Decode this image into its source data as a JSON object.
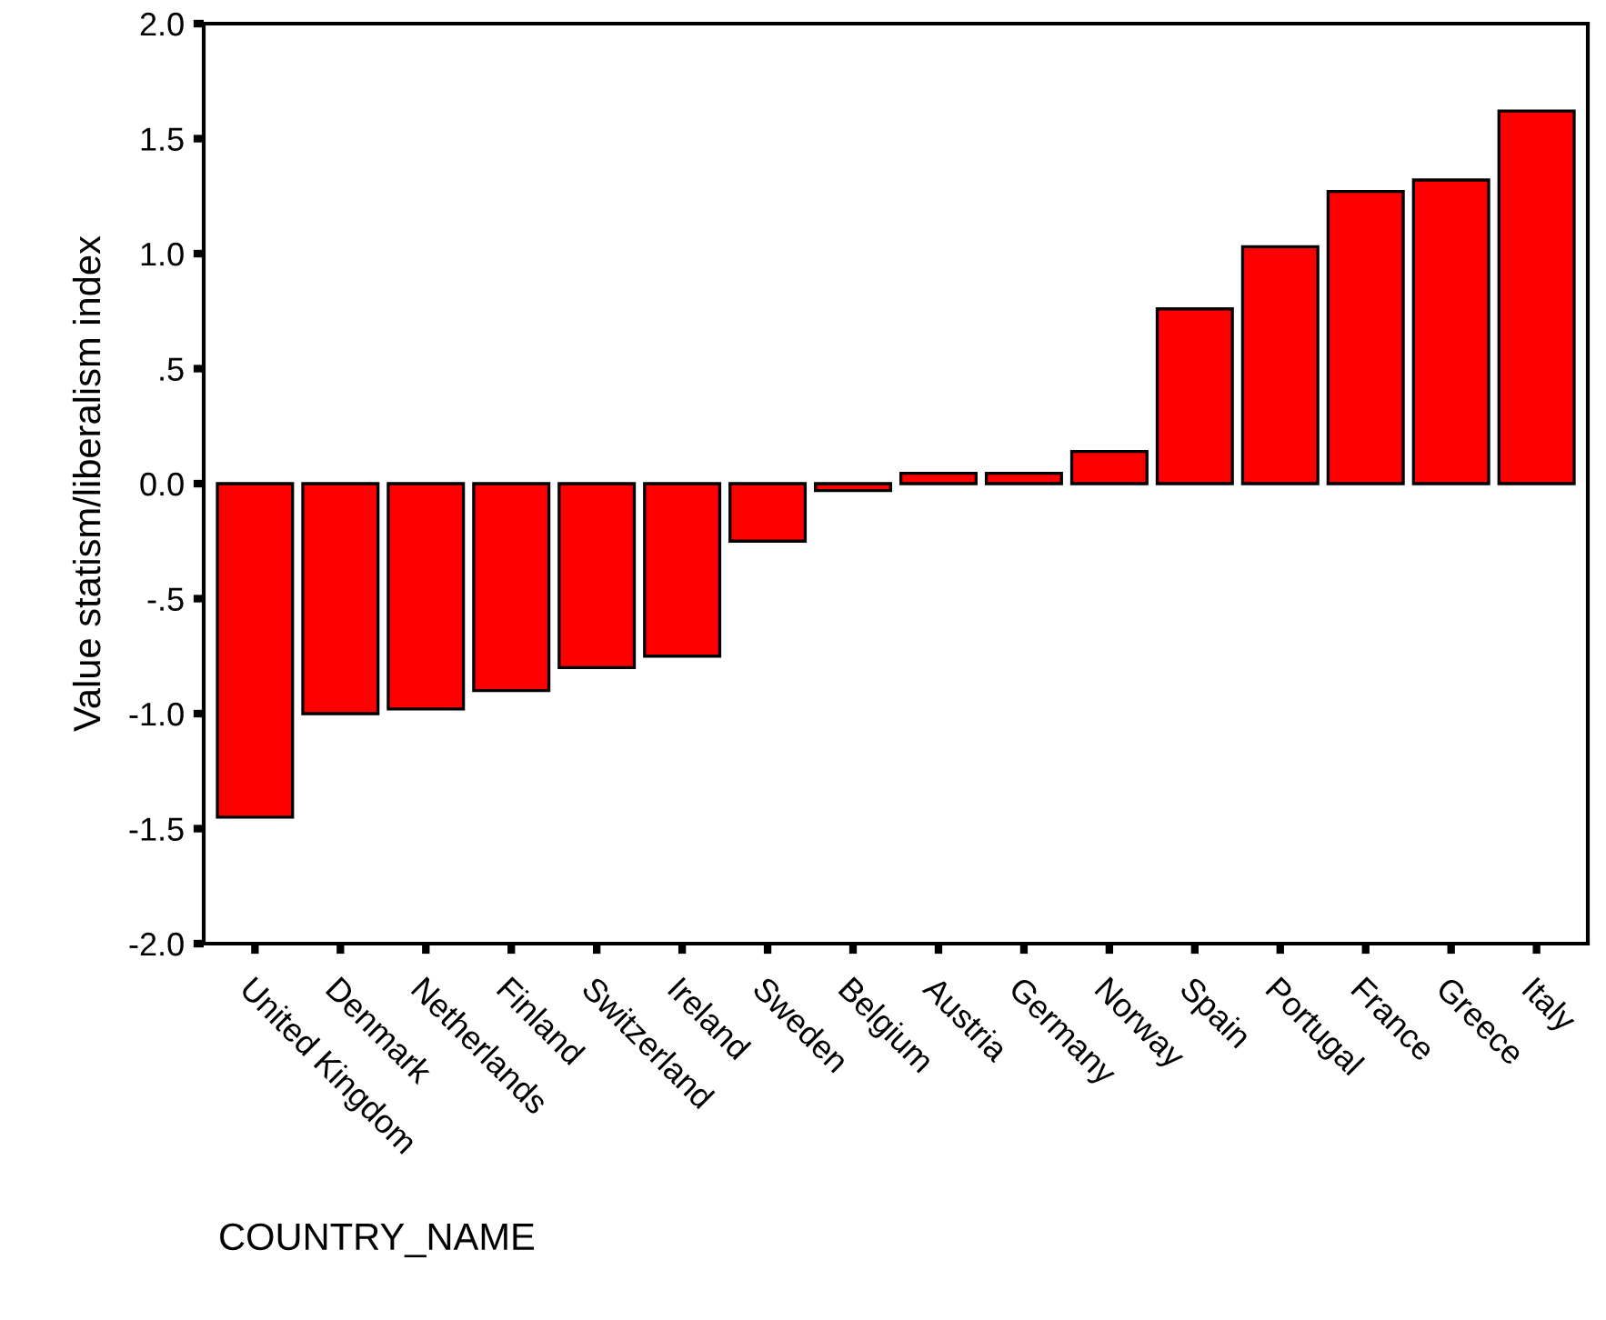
{
  "chart_data": {
    "type": "bar",
    "xlabel": "COUNTRY_NAME",
    "ylabel": "Value statism/liberalism index",
    "categories": [
      "United Kingdom",
      "Denmark",
      "Netherlands",
      "Finland",
      "Switzerland",
      "Ireland",
      "Sweden",
      "Belgium",
      "Austria",
      "Germany",
      "Norway",
      "Spain",
      "Portugal",
      "France",
      "Greece",
      "Italy"
    ],
    "values": [
      -1.45,
      -1.0,
      -0.98,
      -0.9,
      -0.8,
      -0.75,
      -0.25,
      -0.03,
      0.045,
      0.045,
      0.14,
      0.76,
      1.03,
      1.27,
      1.32,
      1.62
    ],
    "color": "#ff0000",
    "ylim": [
      -2.0,
      2.0
    ],
    "yticks": [
      {
        "value": -2.0,
        "label": "-2.0"
      },
      {
        "value": -1.5,
        "label": "-1.5"
      },
      {
        "value": -1.0,
        "label": "-1.0"
      },
      {
        "value": -0.5,
        "label": "-.5"
      },
      {
        "value": 0.0,
        "label": "0.0"
      },
      {
        "value": 0.5,
        "label": ".5"
      },
      {
        "value": 1.0,
        "label": "1.0"
      },
      {
        "value": 1.5,
        "label": "1.5"
      },
      {
        "value": 2.0,
        "label": "2.0"
      }
    ],
    "grid": false,
    "legend": false
  }
}
